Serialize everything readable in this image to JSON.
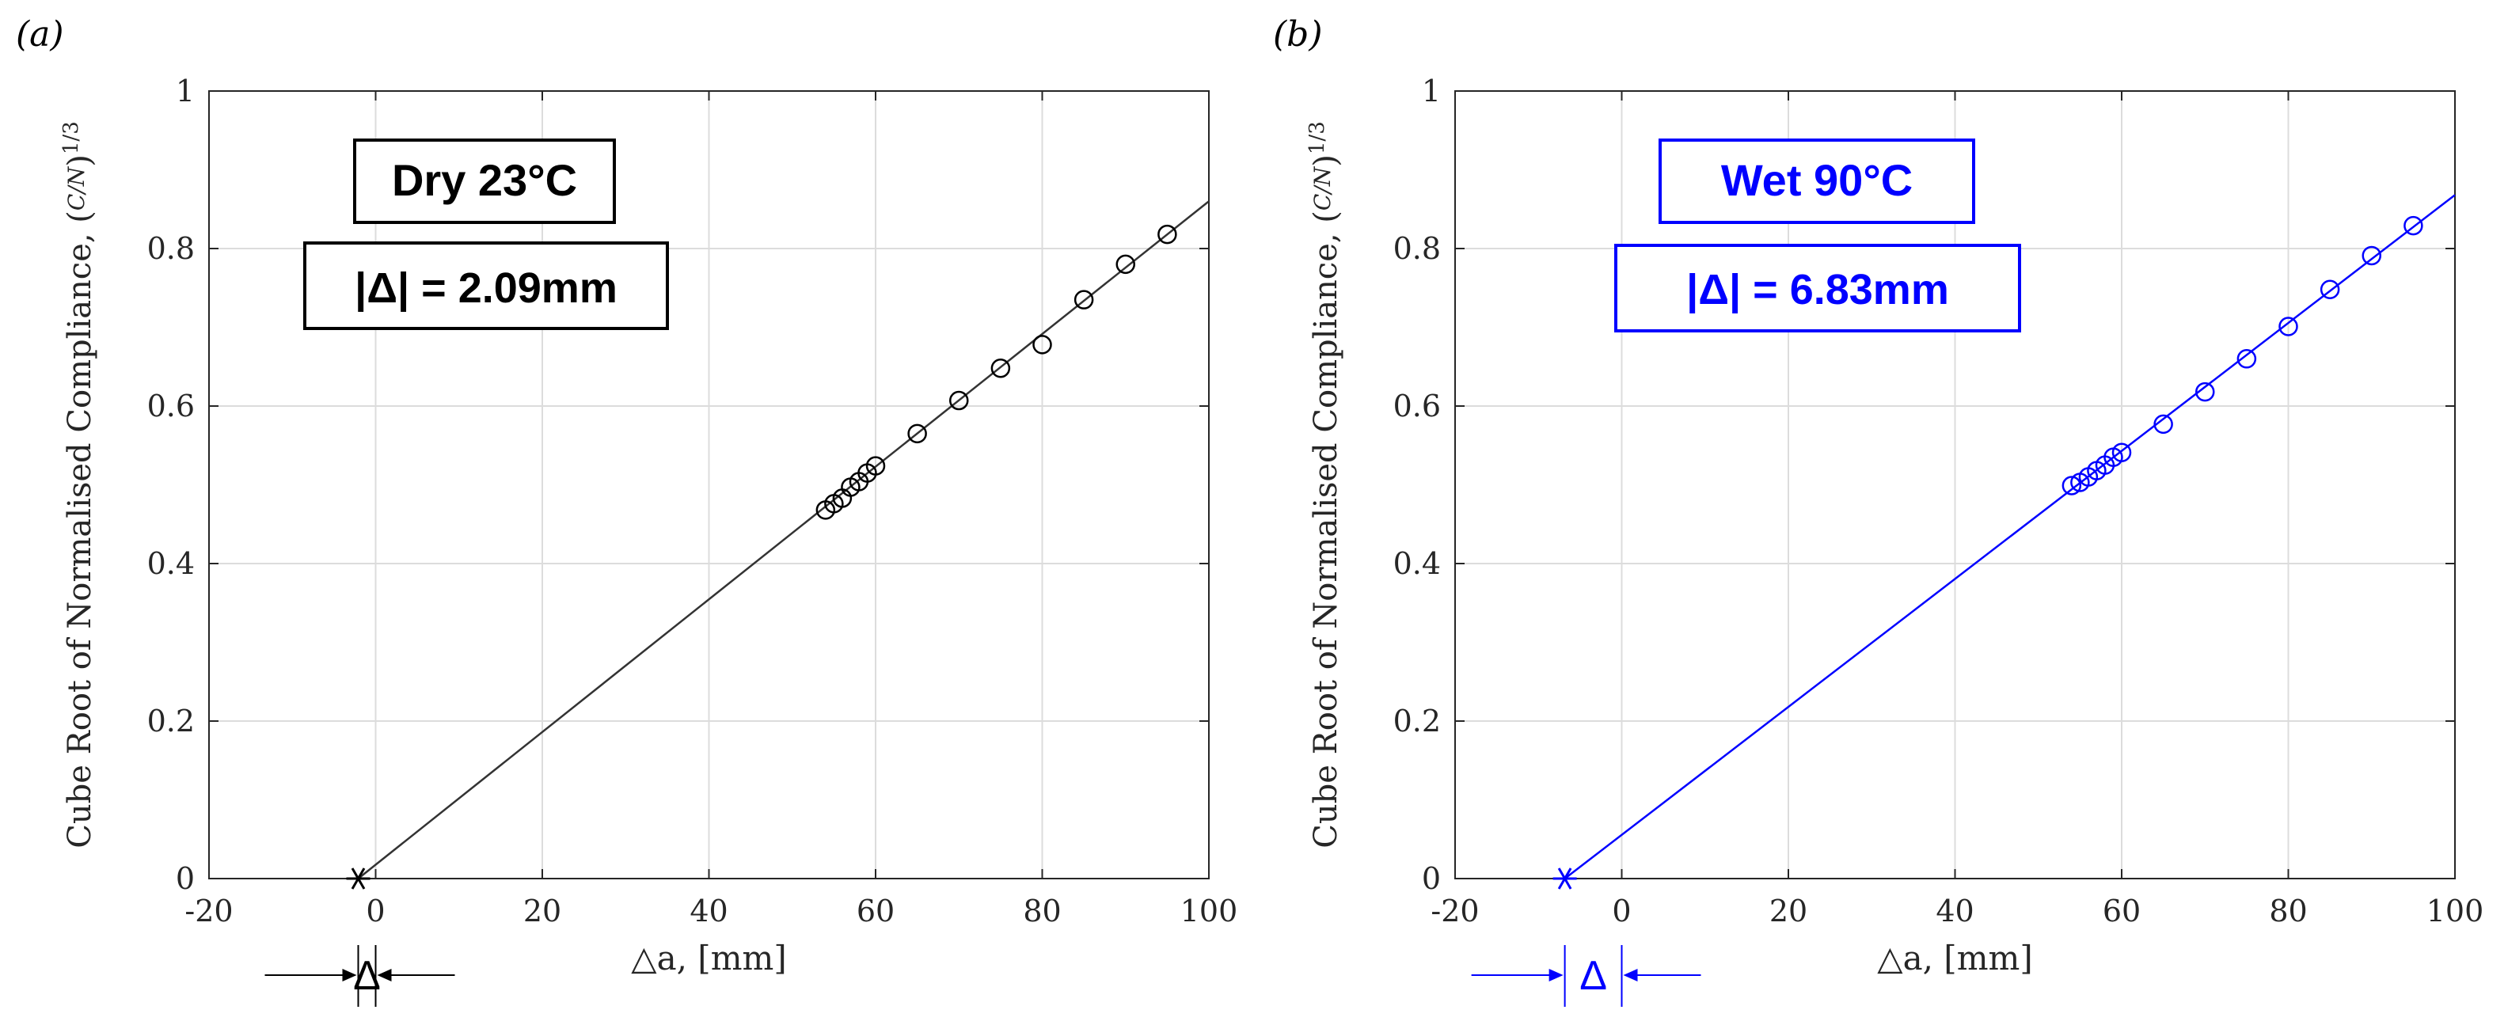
{
  "figure": {
    "panels": [
      {
        "panel_label": "(a)",
        "condition_label": "Dry 23°C",
        "delta_label": "|Δ|  = 2.09mm",
        "offset_label": "Δ",
        "color": "#000000",
        "line_color": "#333333"
      },
      {
        "panel_label": "(b)",
        "condition_label": "Wet 90°C",
        "delta_label": "|Δ| = 6.83mm",
        "offset_label": "Δ",
        "color": "#0000ff",
        "line_color": "#0000ff"
      }
    ]
  },
  "chart_data": [
    {
      "type": "scatter",
      "xlabel": "△a, [mm]",
      "ylabel": "Cube Root of Normalised Compliance, (C/N)^1/3",
      "xlim": [
        -20,
        100
      ],
      "ylim": [
        0,
        1
      ],
      "xticks": [
        -20,
        0,
        20,
        40,
        60,
        80,
        100
      ],
      "yticks": [
        0,
        0.2,
        0.4,
        0.6,
        0.8,
        1
      ],
      "grid": true,
      "series": [
        {
          "marker": "circle",
          "x": [
            54,
            55,
            56,
            57,
            58,
            59,
            60,
            65,
            70,
            75,
            80,
            85,
            90,
            95
          ],
          "y": [
            0.468,
            0.476,
            0.483,
            0.497,
            0.504,
            0.515,
            0.524,
            0.565,
            0.607,
            0.648,
            0.678,
            0.735,
            0.78,
            0.818
          ]
        }
      ],
      "fit_line": {
        "x": [
          -2.09,
          100
        ],
        "y": [
          0,
          0.86
        ]
      },
      "x_intercept": {
        "x": -2.09,
        "y": 0,
        "marker": "asterisk"
      }
    },
    {
      "type": "scatter",
      "xlabel": "△a, [mm]",
      "ylabel": "Cube Root of Normalised Compliance, (C/N)^1/3",
      "xlim": [
        -20,
        100
      ],
      "ylim": [
        0,
        1
      ],
      "xticks": [
        -20,
        0,
        20,
        40,
        60,
        80,
        100
      ],
      "yticks": [
        0,
        0.2,
        0.4,
        0.6,
        0.8,
        1
      ],
      "grid": true,
      "series": [
        {
          "marker": "circle",
          "x": [
            54,
            55,
            56,
            57,
            58,
            59,
            60,
            65,
            70,
            75,
            80,
            85,
            90,
            95
          ],
          "y": [
            0.499,
            0.503,
            0.51,
            0.518,
            0.525,
            0.535,
            0.541,
            0.577,
            0.618,
            0.66,
            0.701,
            0.748,
            0.791,
            0.829
          ]
        }
      ],
      "fit_line": {
        "x": [
          -6.83,
          100
        ],
        "y": [
          0,
          0.868
        ]
      },
      "x_intercept": {
        "x": -6.83,
        "y": 0,
        "marker": "asterisk"
      }
    }
  ]
}
